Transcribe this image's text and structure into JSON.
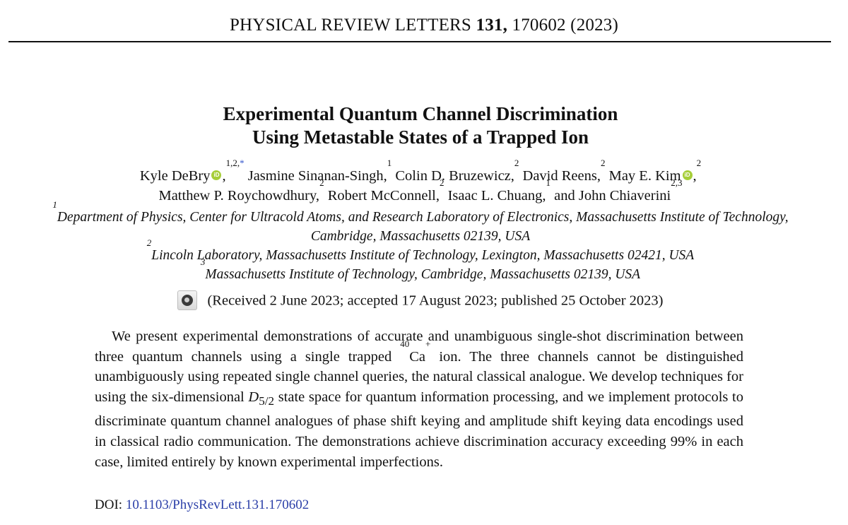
{
  "header": {
    "journal": "PHYSICAL REVIEW LETTERS",
    "volume": "131,",
    "article_number_year": "170602 (2023)"
  },
  "title": {
    "line1": "Experimental Quantum Channel Discrimination",
    "line2": "Using Metastable States of a Trapped Ion"
  },
  "authors": [
    {
      "name": "Kyle DeBry",
      "affil": "1,2,",
      "note": "*",
      "orcid": true
    },
    {
      "name": "Jasmine Sinanan-Singh,",
      "affil": "1"
    },
    {
      "name": "Colin D. Bruzewicz,",
      "affil": "2"
    },
    {
      "name": "David Reens,",
      "affil": "2"
    },
    {
      "name": "May E. Kim",
      "affil": "2",
      "orcid": true
    },
    {
      "name": "Matthew P. Roychowdhury,",
      "affil": "2"
    },
    {
      "name": "Robert McConnell,",
      "affil": "2"
    },
    {
      "name": "Isaac L. Chuang,",
      "affil": "1"
    },
    {
      "name": "and John Chiaverini",
      "affil": "2,3"
    }
  ],
  "affiliations": [
    {
      "num": "1",
      "text": "Department of Physics, Center for Ultracold Atoms, and Research Laboratory of Electronics, Massachusetts Institute of Technology,"
    },
    {
      "num": "",
      "text": "Cambridge, Massachusetts 02139, USA"
    },
    {
      "num": "2",
      "text": "Lincoln Laboratory, Massachusetts Institute of Technology, Lexington, Massachusetts 02421, USA"
    },
    {
      "num": "3",
      "text": "Massachusetts Institute of Technology, Cambridge, Massachusetts 02139, USA"
    }
  ],
  "dates": "(Received 2 June 2023; accepted 17 August 2023; published 25 October 2023)",
  "abstract": {
    "part1": "We present experimental demonstrations of accurate and unambiguous single-shot discrimination between three quantum channels using a single trapped ",
    "ion_mass": "40",
    "ion_symbol": "Ca",
    "ion_charge": "+",
    "part2": " ion. The three channels cannot be distinguished unambiguously using repeated single channel queries, the natural classical analogue. We develop techniques for using the six-dimensional ",
    "state_symbol": "D",
    "state_sub": "5/2",
    "part3": " state space for quantum information processing, and we implement protocols to discriminate quantum channel analogues of phase shift keying and ampli­tude shift keying data encodings used in classical radio communication. The demonstrations achieve discrimination accuracy exceeding 99% in each case, limited entirely by known experimental imperfections."
  },
  "doi": {
    "label": "DOI:",
    "value": "10.1103/PhysRevLett.131.170602"
  },
  "icons": {
    "orcid": "orcid-icon",
    "crossmark": "crossmark-icon"
  },
  "colors": {
    "orcid": "#a6ce39",
    "link": "#2a3ea8"
  }
}
